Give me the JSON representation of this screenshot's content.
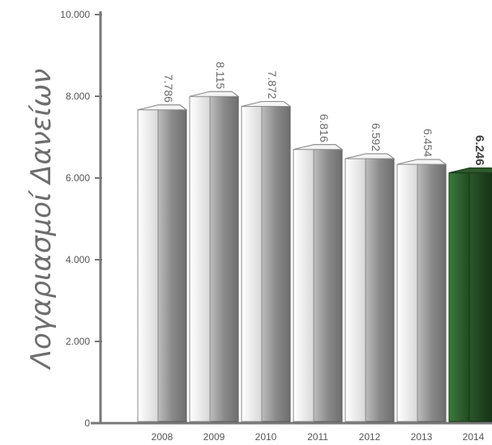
{
  "chart_data": {
    "type": "bar",
    "categories": [
      "2008",
      "2009",
      "2010",
      "2011",
      "2012",
      "2013",
      "2014"
    ],
    "values": [
      7786,
      8115,
      7872,
      6816,
      6592,
      6454,
      6246
    ],
    "value_labels": [
      "7.786",
      "8.115",
      "7.872",
      "6.816",
      "6.592",
      "6.454",
      "6.246"
    ],
    "ylabel": "Λογαριασμοί Δανείων",
    "ylim": [
      0,
      10000
    ],
    "yticks": [
      0,
      2000,
      4000,
      6000,
      8000,
      10000
    ],
    "ytick_labels": [
      "0",
      "2.000",
      "4.000",
      "6.000",
      "8.000",
      "10.000"
    ],
    "grid": false,
    "highlight_category": "2014",
    "colors": {
      "bar_front": "#e9e9e9",
      "bar_side": "#8f8f8f",
      "highlight_front": "#2f5e2f",
      "highlight_side": "#1c3a1c",
      "axis": "#777777",
      "label_text": "#6a6a6a"
    }
  }
}
